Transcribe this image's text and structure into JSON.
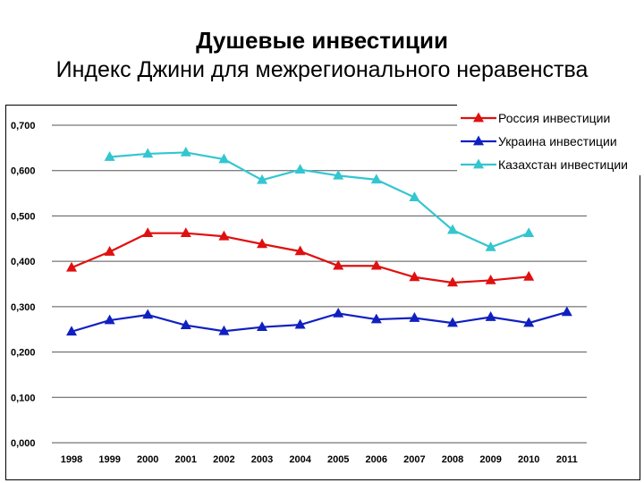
{
  "title": "Душевые инвестиции",
  "subtitle": "Индекс Джини для межрегионального неравенства",
  "chart_data": {
    "type": "line",
    "title": "Душевые инвестиции",
    "subtitle": "Индекс Джини для межрегионального неравенства",
    "xlabel": "",
    "ylabel": "",
    "ylim": [
      0,
      0.7
    ],
    "yticks": [
      "0,000",
      "0,100",
      "0,200",
      "0,300",
      "0,400",
      "0,500",
      "0,600",
      "0,700"
    ],
    "grid": true,
    "legend_position": "top-right",
    "categories": [
      "1998",
      "1999",
      "2000",
      "2001",
      "2002",
      "2003",
      "2004",
      "2005",
      "2006",
      "2007",
      "2008",
      "2009",
      "2010",
      "2011"
    ],
    "series": [
      {
        "name": "Россия инвестиции",
        "color": "#e01010",
        "values": [
          0.386,
          0.421,
          0.462,
          0.462,
          0.455,
          0.438,
          0.422,
          0.39,
          0.39,
          0.365,
          0.353,
          0.358,
          0.366,
          null
        ]
      },
      {
        "name": "Украина инвестиции",
        "color": "#1020c0",
        "values": [
          0.245,
          0.27,
          0.282,
          0.259,
          0.246,
          0.255,
          0.26,
          0.285,
          0.272,
          0.275,
          0.264,
          0.277,
          0.264,
          0.288
        ]
      },
      {
        "name": "Казахстан инвестиции",
        "color": "#33c6d0",
        "values": [
          null,
          0.63,
          0.637,
          0.64,
          0.625,
          0.579,
          0.602,
          0.589,
          0.58,
          0.541,
          0.469,
          0.431,
          0.462,
          null
        ]
      }
    ]
  }
}
